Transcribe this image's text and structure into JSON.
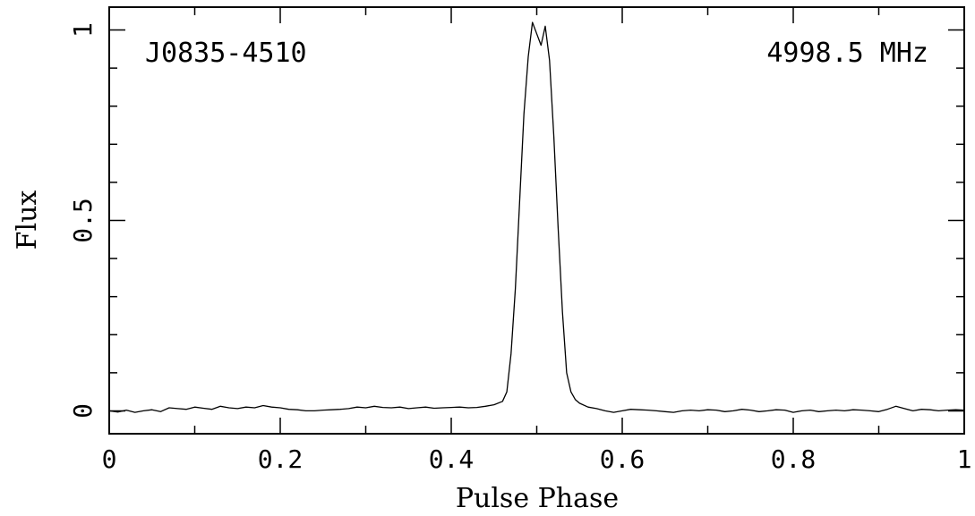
{
  "chart_data": {
    "type": "line",
    "xlabel": "Pulse Phase",
    "ylabel": "Flux",
    "xlim": [
      0,
      1
    ],
    "ylim": [
      -0.06,
      1.06
    ],
    "grid": false,
    "annotations": {
      "left": "J0835-4510",
      "right": "4998.5 MHz"
    },
    "x_ticks": [
      {
        "value": 0,
        "label": "0"
      },
      {
        "value": 0.2,
        "label": "0.2"
      },
      {
        "value": 0.4,
        "label": "0.4"
      },
      {
        "value": 0.6,
        "label": "0.6"
      },
      {
        "value": 0.8,
        "label": "0.8"
      },
      {
        "value": 1,
        "label": "1"
      }
    ],
    "y_ticks": [
      {
        "value": 0,
        "label": "0"
      },
      {
        "value": 0.5,
        "label": "0.5"
      },
      {
        "value": 1,
        "label": "1"
      }
    ],
    "x_minor_step": 0.1,
    "y_minor_step": 0.1,
    "series": [
      {
        "x": [
          0,
          0.01,
          0.02,
          0.03,
          0.04,
          0.05,
          0.06,
          0.07,
          0.08,
          0.09,
          0.1,
          0.11,
          0.12,
          0.13,
          0.14,
          0.15,
          0.16,
          0.17,
          0.18,
          0.19,
          0.2,
          0.21,
          0.22,
          0.23,
          0.24,
          0.25,
          0.26,
          0.27,
          0.28,
          0.29,
          0.3,
          0.31,
          0.32,
          0.33,
          0.34,
          0.35,
          0.36,
          0.37,
          0.38,
          0.39,
          0.4,
          0.41,
          0.42,
          0.43,
          0.44,
          0.45,
          0.46,
          0.465,
          0.47,
          0.475,
          0.48,
          0.485,
          0.49,
          0.495,
          0.5,
          0.505,
          0.51,
          0.515,
          0.52,
          0.525,
          0.53,
          0.535,
          0.54,
          0.545,
          0.55,
          0.56,
          0.57,
          0.58,
          0.59,
          0.6,
          0.61,
          0.62,
          0.63,
          0.64,
          0.65,
          0.66,
          0.67,
          0.68,
          0.69,
          0.7,
          0.71,
          0.72,
          0.73,
          0.74,
          0.75,
          0.76,
          0.77,
          0.78,
          0.79,
          0.8,
          0.81,
          0.82,
          0.83,
          0.84,
          0.85,
          0.86,
          0.87,
          0.88,
          0.89,
          0.9,
          0.91,
          0.92,
          0.93,
          0.94,
          0.95,
          0.96,
          0.97,
          0.98,
          0.99,
          1.0
        ],
        "y": [
          0.0,
          -0.003,
          0.002,
          -0.004,
          0.0,
          0.003,
          -0.002,
          0.008,
          0.006,
          0.004,
          0.01,
          0.007,
          0.004,
          0.012,
          0.008,
          0.006,
          0.01,
          0.008,
          0.014,
          0.01,
          0.008,
          0.004,
          0.003,
          0.0,
          0.0,
          0.002,
          0.003,
          0.004,
          0.006,
          0.01,
          0.008,
          0.012,
          0.009,
          0.008,
          0.01,
          0.006,
          0.008,
          0.01,
          0.007,
          0.008,
          0.009,
          0.01,
          0.008,
          0.009,
          0.012,
          0.016,
          0.025,
          0.05,
          0.15,
          0.32,
          0.55,
          0.78,
          0.93,
          1.02,
          0.99,
          0.96,
          1.01,
          0.92,
          0.72,
          0.48,
          0.26,
          0.1,
          0.05,
          0.03,
          0.02,
          0.01,
          0.006,
          0.0,
          -0.004,
          0.0,
          0.004,
          0.003,
          0.002,
          0.0,
          -0.002,
          -0.004,
          0.0,
          0.002,
          0.0,
          0.003,
          0.002,
          -0.002,
          0.0,
          0.004,
          0.002,
          -0.002,
          0.0,
          0.003,
          0.002,
          -0.004,
          0.0,
          0.002,
          -0.002,
          0.0,
          0.002,
          0.0,
          0.003,
          0.002,
          0.0,
          -0.002,
          0.004,
          0.012,
          0.006,
          0.0,
          0.004,
          0.003,
          0.0,
          0.002,
          0.003,
          0.002
        ]
      }
    ]
  }
}
